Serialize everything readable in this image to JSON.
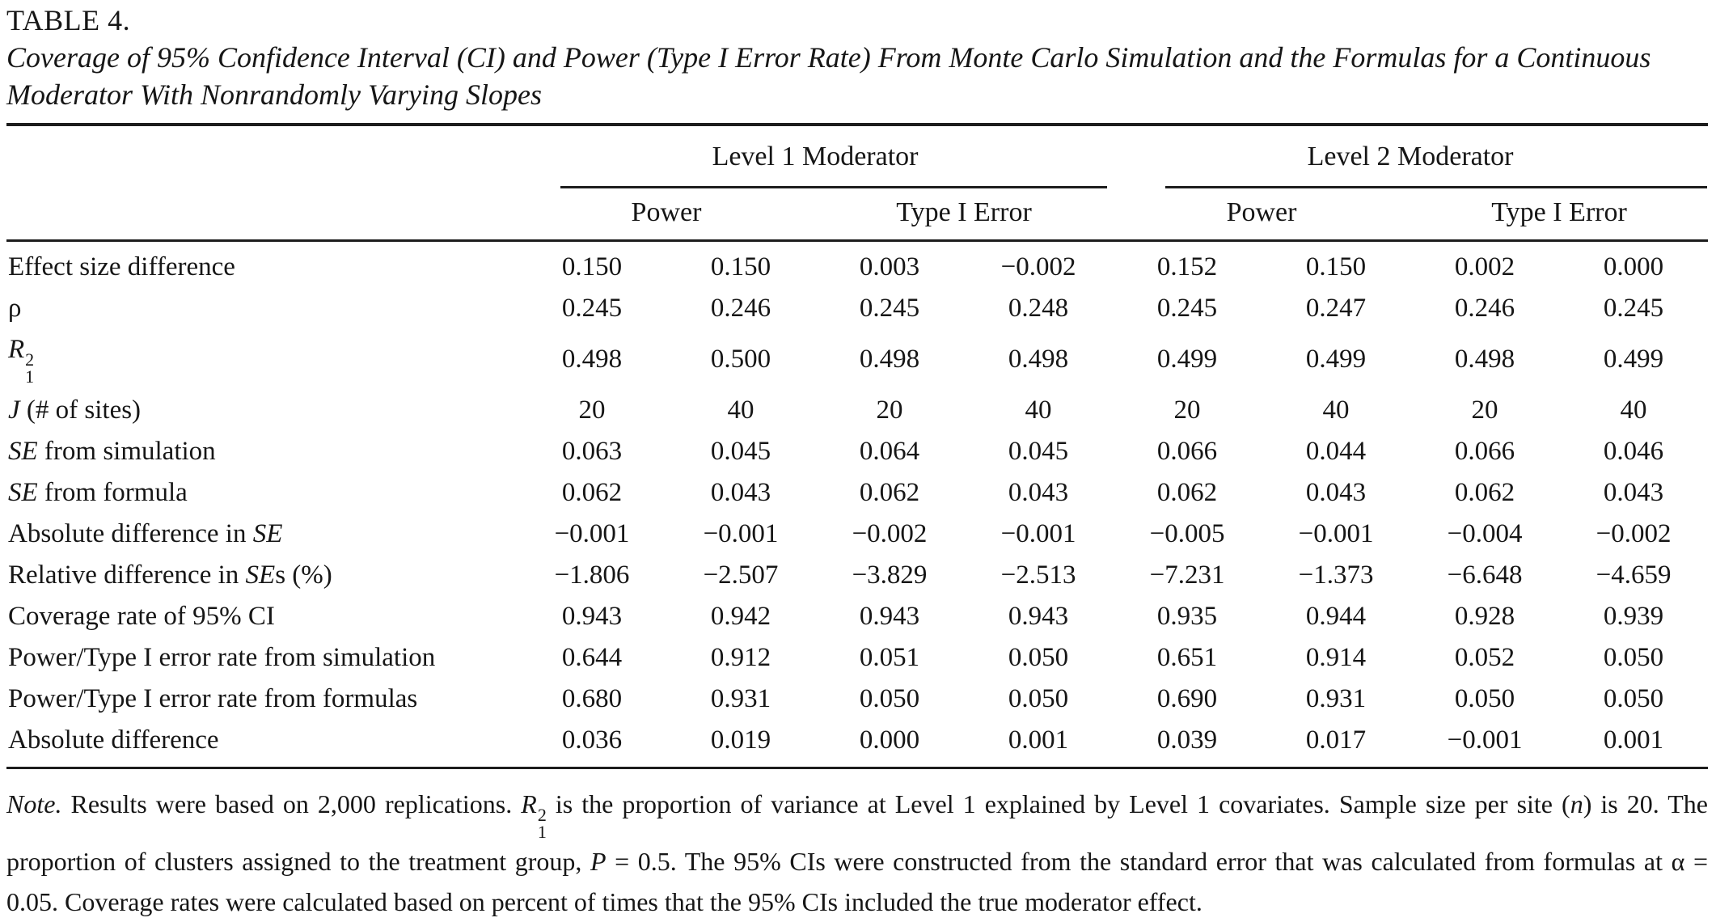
{
  "title": "TABLE 4.",
  "caption": "Coverage of 95% Confidence Interval (CI) and Power (Type I Error Rate) From Monte Carlo Simulation and the Formulas for a Continuous Moderator With Nonrandomly Varying Slopes",
  "header": {
    "group1": "Level 1 Moderator",
    "group2": "Level 2 Moderator",
    "sub": [
      "Power",
      "Type I Error",
      "Power",
      "Type I Error"
    ]
  },
  "rows": [
    {
      "label": [
        {
          "text": "Effect size difference"
        }
      ],
      "values": [
        "0.150",
        "0.150",
        "0.003",
        "−0.002",
        "0.152",
        "0.150",
        "0.002",
        "0.000"
      ]
    },
    {
      "label": [
        {
          "text": "ρ"
        }
      ],
      "values": [
        "0.245",
        "0.246",
        "0.245",
        "0.248",
        "0.245",
        "0.247",
        "0.246",
        "0.245"
      ]
    },
    {
      "label": [
        {
          "text": "R",
          "italic": true
        },
        {
          "sup": "2",
          "sub": "1"
        }
      ],
      "values": [
        "0.498",
        "0.500",
        "0.498",
        "0.498",
        "0.499",
        "0.499",
        "0.498",
        "0.499"
      ]
    },
    {
      "label": [
        {
          "text": "J",
          "italic": true
        },
        {
          "text": " (# of sites)"
        }
      ],
      "values": [
        "20",
        "40",
        "20",
        "40",
        "20",
        "40",
        "20",
        "40"
      ]
    },
    {
      "label": [
        {
          "text": "SE",
          "italic": true
        },
        {
          "text": " from simulation"
        }
      ],
      "values": [
        "0.063",
        "0.045",
        "0.064",
        "0.045",
        "0.066",
        "0.044",
        "0.066",
        "0.046"
      ]
    },
    {
      "label": [
        {
          "text": "SE",
          "italic": true
        },
        {
          "text": " from formula"
        }
      ],
      "values": [
        "0.062",
        "0.043",
        "0.062",
        "0.043",
        "0.062",
        "0.043",
        "0.062",
        "0.043"
      ]
    },
    {
      "label": [
        {
          "text": "Absolute difference in "
        },
        {
          "text": "SE",
          "italic": true
        }
      ],
      "values": [
        "−0.001",
        "−0.001",
        "−0.002",
        "−0.001",
        "−0.005",
        "−0.001",
        "−0.004",
        "−0.002"
      ]
    },
    {
      "label": [
        {
          "text": "Relative difference in "
        },
        {
          "text": "SE",
          "italic": true
        },
        {
          "text": "s (%)"
        }
      ],
      "values": [
        "−1.806",
        "−2.507",
        "−3.829",
        "−2.513",
        "−7.231",
        "−1.373",
        "−6.648",
        "−4.659"
      ]
    },
    {
      "label": [
        {
          "text": "Coverage rate of 95% CI"
        }
      ],
      "values": [
        "0.943",
        "0.942",
        "0.943",
        "0.943",
        "0.935",
        "0.944",
        "0.928",
        "0.939"
      ]
    },
    {
      "label": [
        {
          "text": "Power/Type I error rate from simulation"
        }
      ],
      "values": [
        "0.644",
        "0.912",
        "0.051",
        "0.050",
        "0.651",
        "0.914",
        "0.052",
        "0.050"
      ]
    },
    {
      "label": [
        {
          "text": "Power/Type I error rate from formulas"
        }
      ],
      "values": [
        "0.680",
        "0.931",
        "0.050",
        "0.050",
        "0.690",
        "0.931",
        "0.050",
        "0.050"
      ]
    },
    {
      "label": [
        {
          "text": "Absolute difference"
        }
      ],
      "values": [
        "0.036",
        "0.019",
        "0.000",
        "0.001",
        "0.039",
        "0.017",
        "−0.001",
        "0.001"
      ]
    }
  ],
  "note": {
    "parts": [
      {
        "text": "Note.",
        "italic": true
      },
      {
        "text": " Results were based on 2,000 replications. "
      },
      {
        "text": "R",
        "italic": true
      },
      {
        "sup": "2",
        "sub": "1"
      },
      {
        "text": " is the proportion of variance at Level 1 explained by Level 1 covariates. Sample size per site ("
      },
      {
        "text": "n",
        "italic": true
      },
      {
        "text": ") is 20. The proportion of clusters assigned to the treatment group, "
      },
      {
        "text": "P",
        "italic": true
      },
      {
        "text": " = 0.5. The 95% CIs were constructed from the standard error that was calculated from formulas at α = 0.05. Coverage rates were calculated based on percent of times that the 95% CIs included the true moderator effect."
      }
    ]
  }
}
